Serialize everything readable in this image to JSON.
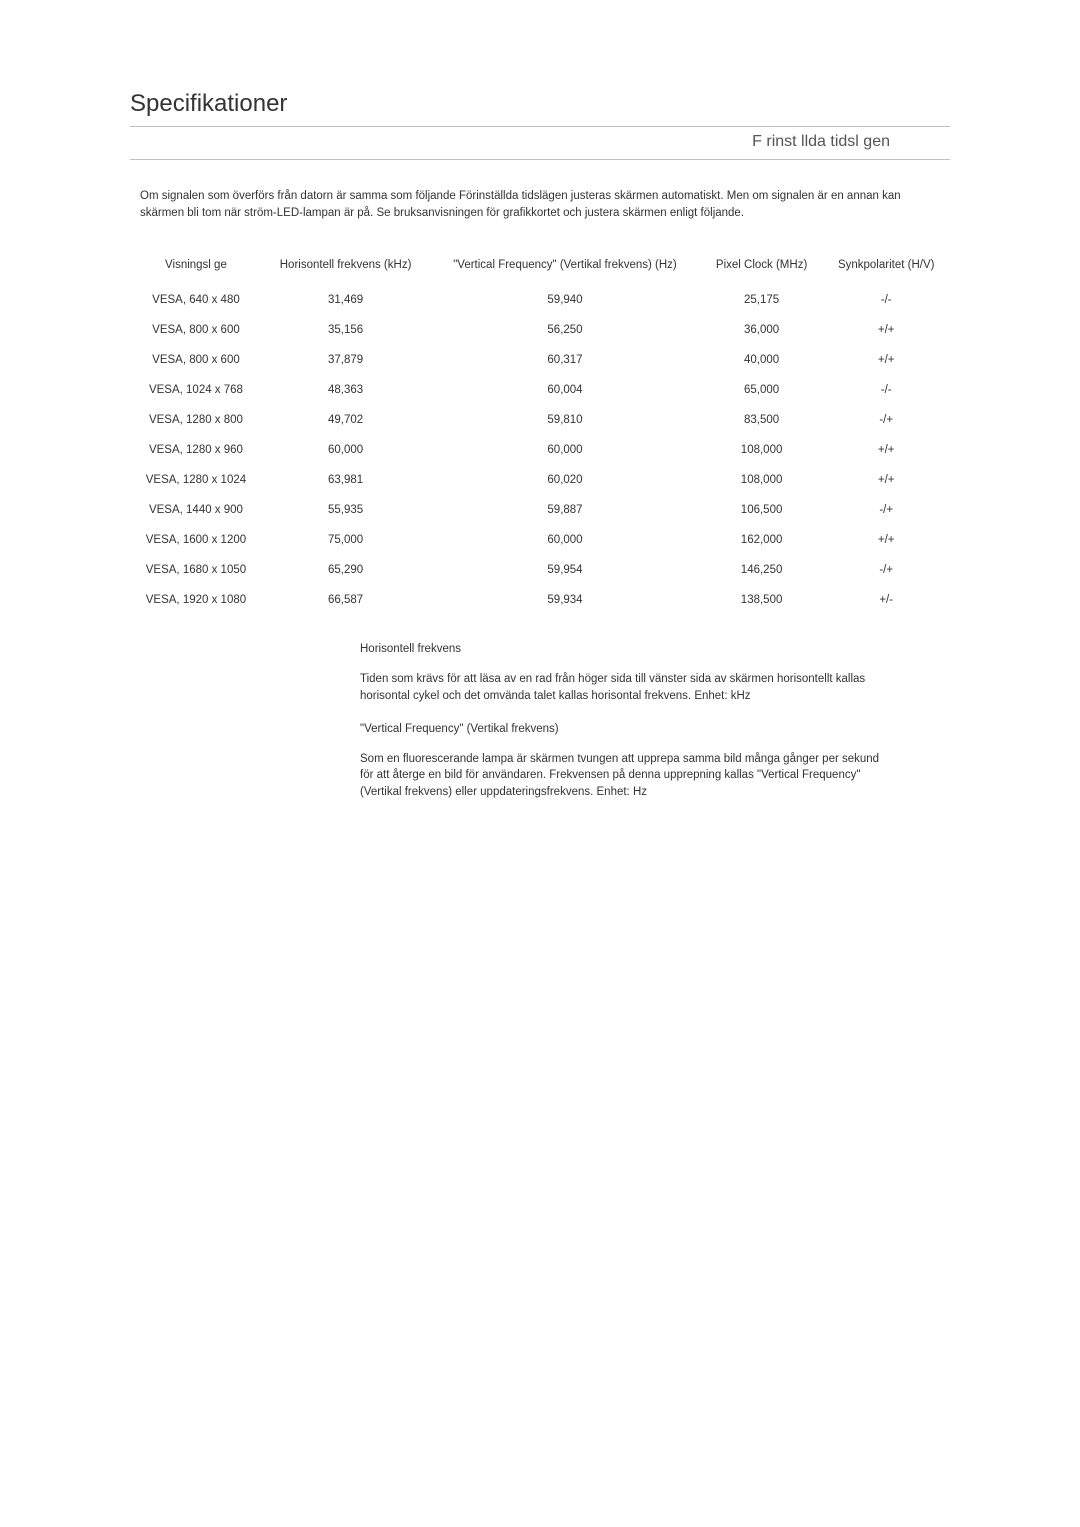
{
  "page_title": "Specifikationer",
  "section_title": "F rinst llda tidsl gen",
  "intro_paragraph": "Om signalen som överförs från datorn är samma som följande Förinställda tidslägen justeras skärmen automatiskt. Men om signalen är en annan kan skärmen bli tom när ström-LED-lampan är på. Se bruksanvisningen för grafikkortet och justera skärmen enligt följande.",
  "table": {
    "columns": [
      "Visningsl ge",
      "Horisontell frekvens (kHz)",
      "\"Vertical Frequency\" (Vertikal frekvens) (Hz)",
      "Pixel Clock (MHz)",
      "Synkpolaritet (H/V)"
    ],
    "rows": [
      [
        "VESA, 640 x 480",
        "31,469",
        "59,940",
        "25,175",
        "-/-"
      ],
      [
        "VESA, 800 x 600",
        "35,156",
        "56,250",
        "36,000",
        "+/+"
      ],
      [
        "VESA, 800 x 600",
        "37,879",
        "60,317",
        "40,000",
        "+/+"
      ],
      [
        "VESA, 1024 x 768",
        "48,363",
        "60,004",
        "65,000",
        "-/-"
      ],
      [
        "VESA, 1280 x 800",
        "49,702",
        "59,810",
        "83,500",
        "-/+"
      ],
      [
        "VESA, 1280 x 960",
        "60,000",
        "60,000",
        "108,000",
        "+/+"
      ],
      [
        "VESA, 1280 x 1024",
        "63,981",
        "60,020",
        "108,000",
        "+/+"
      ],
      [
        "VESA, 1440 x 900",
        "55,935",
        "59,887",
        "106,500",
        "-/+"
      ],
      [
        "VESA, 1600 x 1200",
        "75,000",
        "60,000",
        "162,000",
        "+/+"
      ],
      [
        "VESA, 1680 x 1050",
        "65,290",
        "59,954",
        "146,250",
        "-/+"
      ],
      [
        "VESA, 1920 x 1080",
        "66,587",
        "59,934",
        "138,500",
        "+/-"
      ]
    ]
  },
  "explanations": {
    "heading1": "Horisontell frekvens",
    "text1": "Tiden som krävs för att läsa av en rad från höger sida till vänster sida av skärmen horisontellt kallas horisontal cykel och det omvända talet kallas horisontal frekvens. Enhet: kHz",
    "heading2": "\"Vertical Frequency\" (Vertikal frekvens)",
    "text2": "Som en fluorescerande lampa är skärmen tvungen att upprepa samma bild många gånger per sekund för att återge en bild för användaren. Frekvensen på denna upprepning kallas \"Vertical Frequency\" (Vertikal frekvens) eller uppdateringsfrekvens. Enhet: Hz"
  }
}
